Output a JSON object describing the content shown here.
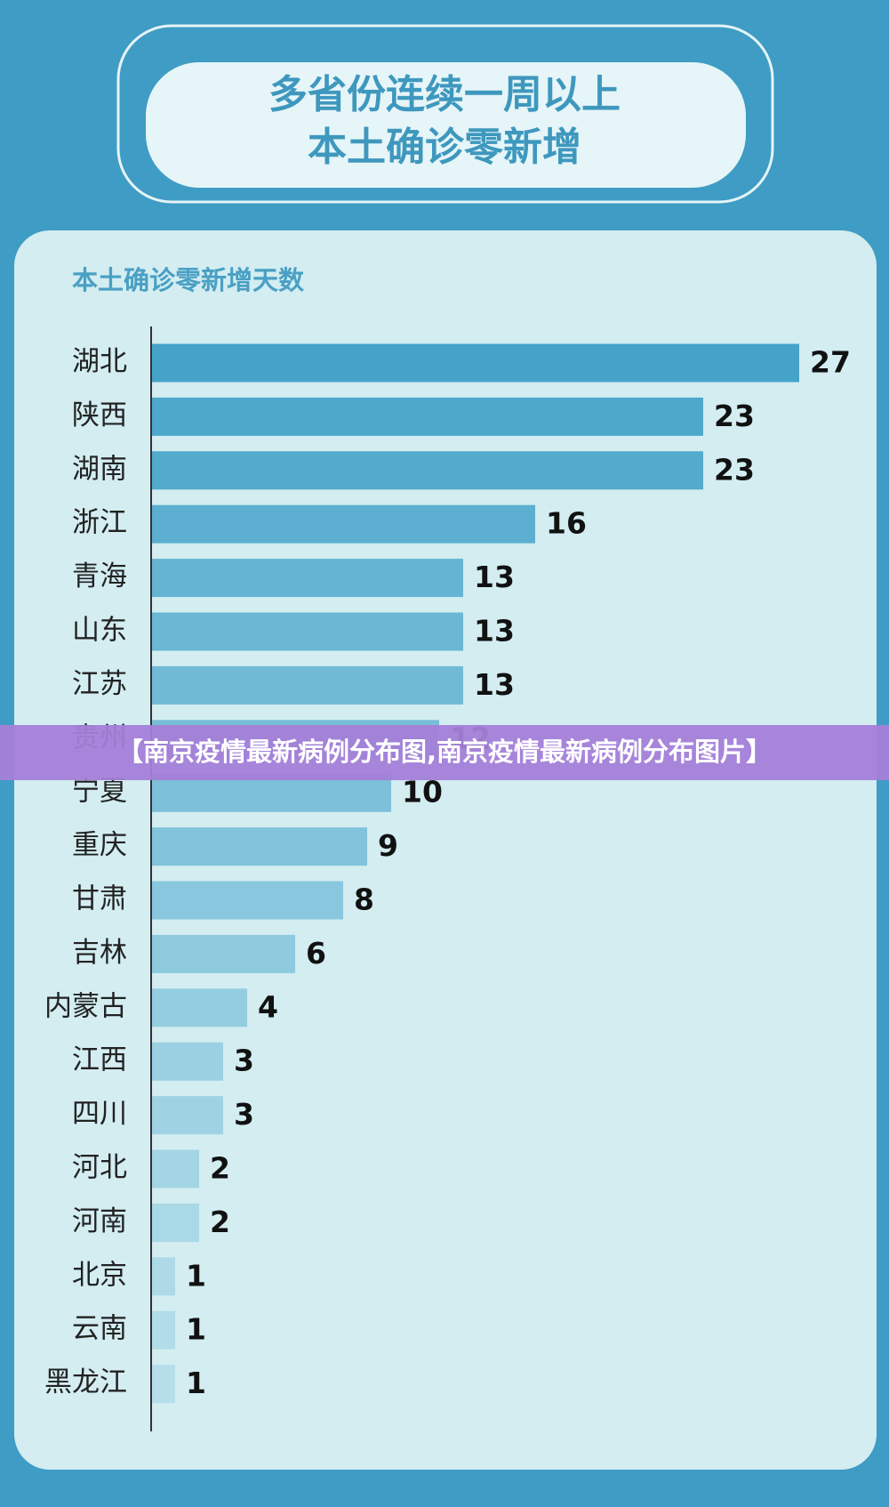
{
  "chart_data": {
    "type": "hbar",
    "title": [
      "多省份连续一周以上",
      "本土确诊零新增"
    ],
    "subtitle": "本土确诊零新增天数",
    "categories": [
      "湖北",
      "陕西",
      "湖南",
      "浙江",
      "青海",
      "山东",
      "江苏",
      "贵州",
      "宁夏",
      "重庆",
      "甘肃",
      "吉林",
      "内蒙古",
      "江西",
      "四川",
      "河北",
      "河南",
      "北京",
      "云南",
      "黑龙江"
    ],
    "values": [
      27,
      23,
      23,
      16,
      13,
      13,
      13,
      12,
      10,
      9,
      8,
      6,
      4,
      3,
      3,
      2,
      2,
      1,
      1,
      1
    ],
    "colors": [
      "#45a3c9",
      "#4ea8cc",
      "#52aacd",
      "#5cafd0",
      "#66b4d3",
      "#6bb7d4",
      "#70bad6",
      "#76bdd7",
      "#7cc0d9",
      "#82c4db",
      "#88c7dd",
      "#8ecade",
      "#94cde0",
      "#9ad0e2",
      "#9fd3e3",
      "#a4d5e4",
      "#a9d8e6",
      "#aedae7",
      "#b2dce8",
      "#b6dee9"
    ],
    "xlim": [
      0,
      27
    ]
  },
  "banner": "【南京疫情最新病例分布图,南京疫情最新病例分布图片】"
}
